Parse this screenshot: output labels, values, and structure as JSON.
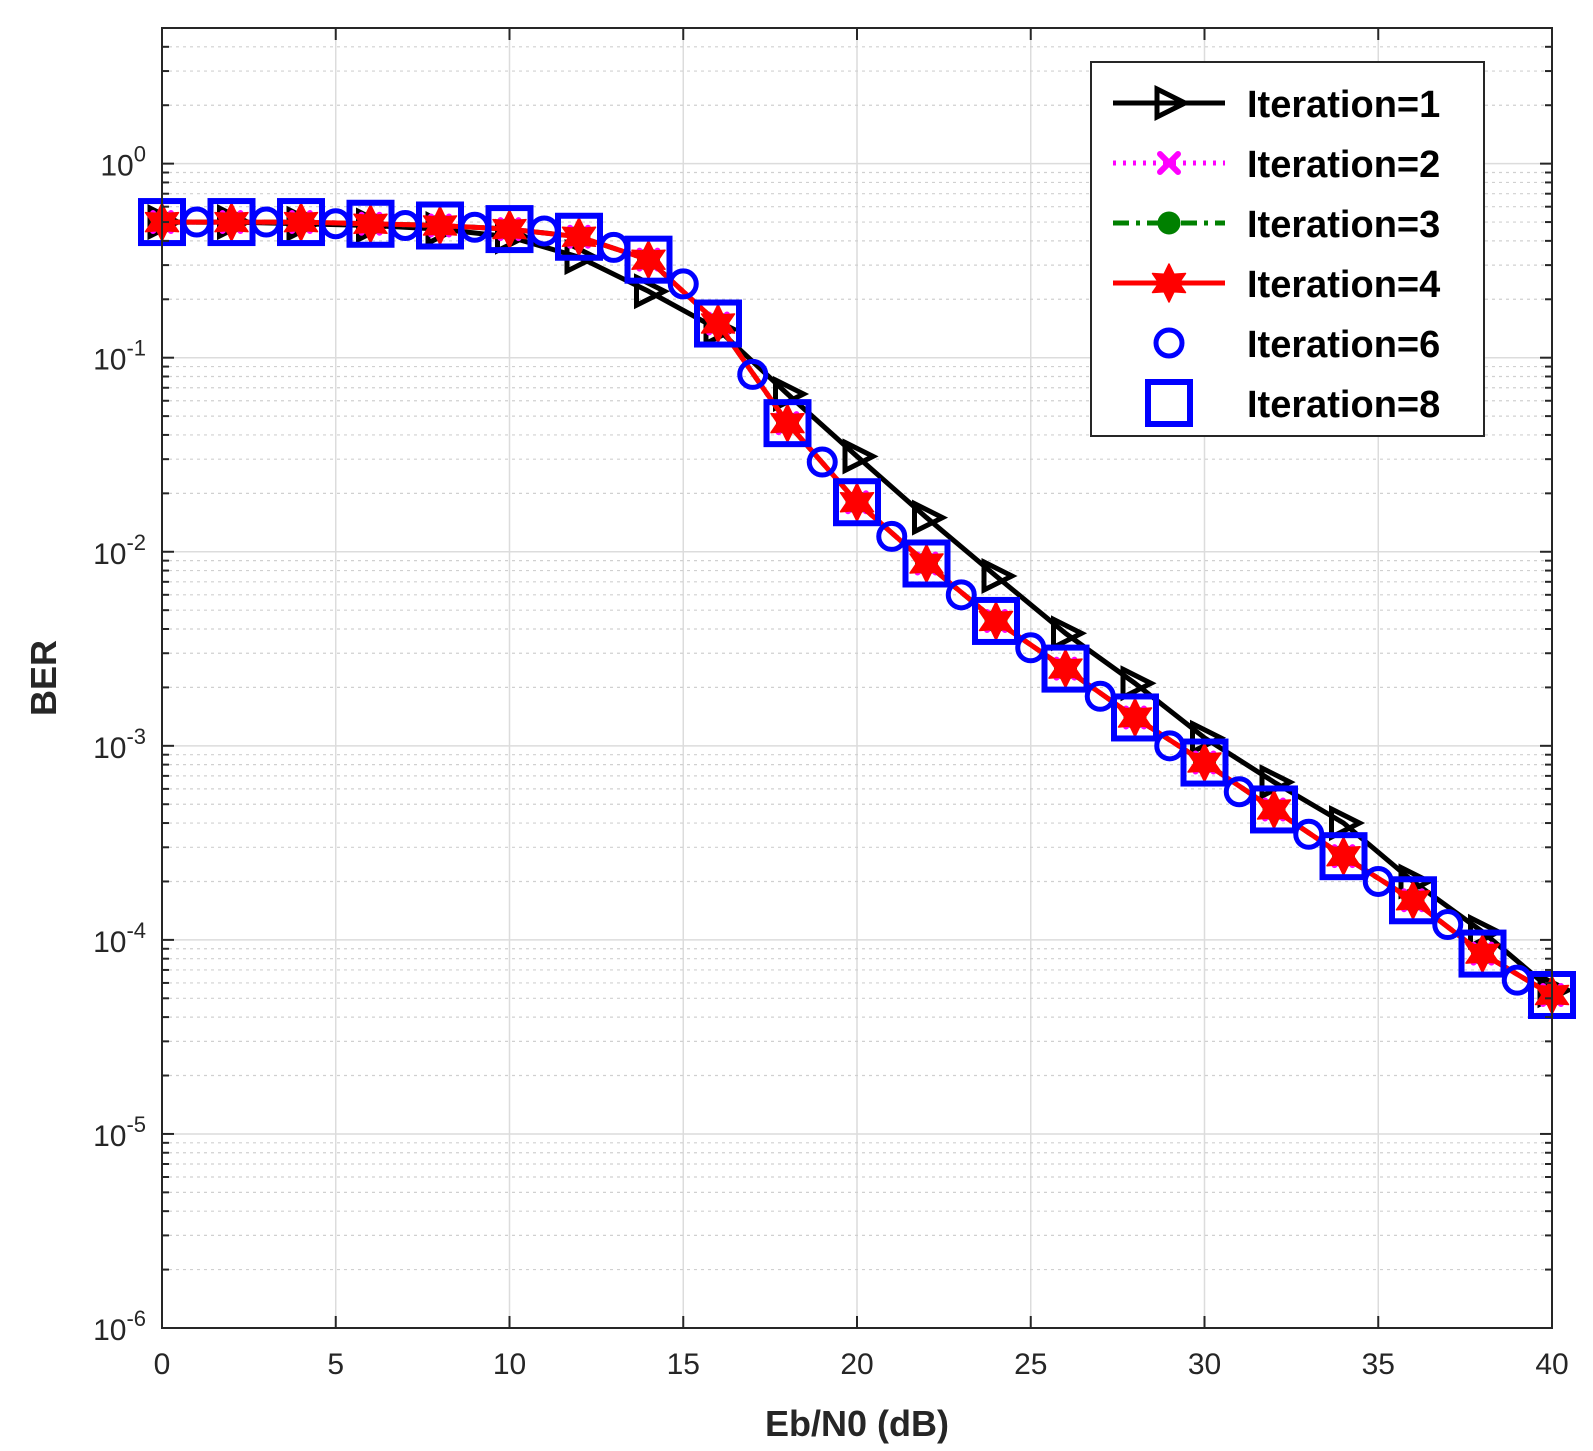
{
  "chart_data": {
    "type": "line",
    "title": "",
    "xlabel": "Eb/N0 (dB)",
    "ylabel": "BER",
    "xscale": "linear",
    "yscale": "log",
    "xlim": [
      0,
      40
    ],
    "ylim": [
      1e-06,
      5
    ],
    "xticks": [
      0,
      5,
      10,
      15,
      20,
      25,
      30,
      35,
      40
    ],
    "yticks": [
      {
        "value": 1e-06,
        "base": "10",
        "exp": "-6"
      },
      {
        "value": 1e-05,
        "base": "10",
        "exp": "-5"
      },
      {
        "value": 0.0001,
        "base": "10",
        "exp": "-4"
      },
      {
        "value": 0.001,
        "base": "10",
        "exp": "-3"
      },
      {
        "value": 0.01,
        "base": "10",
        "exp": "-2"
      },
      {
        "value": 0.1,
        "base": "10",
        "exp": "-1"
      },
      {
        "value": 1,
        "base": "10",
        "exp": "0"
      }
    ],
    "grid": true,
    "legend_position": "top-right",
    "series": [
      {
        "name": "Iteration=1",
        "color": "#000000",
        "line": "solid",
        "marker": "triangle-right",
        "x": [
          0,
          2,
          4,
          6,
          8,
          10,
          12,
          14,
          16,
          18,
          20,
          22,
          24,
          26,
          28,
          30,
          32,
          34,
          36,
          38,
          40
        ],
        "y": [
          0.5,
          0.5,
          0.49,
          0.48,
          0.46,
          0.42,
          0.33,
          0.22,
          0.14,
          0.065,
          0.031,
          0.015,
          0.0075,
          0.0038,
          0.0021,
          0.0011,
          0.00065,
          0.0004,
          0.0002,
          0.00011,
          5.5e-05
        ]
      },
      {
        "name": "Iteration=2",
        "color": "#ff00ff",
        "line": "dotted",
        "marker": "x",
        "x": [
          0,
          2,
          4,
          6,
          8,
          10,
          12,
          14,
          16,
          18,
          20,
          22,
          24,
          26,
          28,
          30,
          32,
          34,
          36,
          38,
          40
        ],
        "y": [
          0.5,
          0.5,
          0.5,
          0.49,
          0.48,
          0.46,
          0.42,
          0.32,
          0.15,
          0.046,
          0.018,
          0.0087,
          0.0044,
          0.0025,
          0.0014,
          0.00082,
          0.00047,
          0.00027,
          0.00016,
          8.5e-05,
          5.2e-05
        ]
      },
      {
        "name": "Iteration=3",
        "color": "#008000",
        "line": "dashdot",
        "marker": "circle-filled",
        "x": [
          0,
          2,
          4,
          6,
          8,
          10,
          12,
          14,
          16,
          18,
          20,
          22,
          24,
          26,
          28,
          30,
          32,
          34,
          36,
          38,
          40
        ],
        "y": [
          0.5,
          0.5,
          0.5,
          0.49,
          0.48,
          0.46,
          0.42,
          0.32,
          0.15,
          0.046,
          0.018,
          0.0087,
          0.0044,
          0.0025,
          0.0014,
          0.00082,
          0.00047,
          0.00027,
          0.00016,
          8.5e-05,
          5.2e-05
        ]
      },
      {
        "name": "Iteration=4",
        "color": "#ff0000",
        "line": "solid",
        "marker": "hexagram",
        "x": [
          0,
          2,
          4,
          6,
          8,
          10,
          12,
          14,
          16,
          18,
          20,
          22,
          24,
          26,
          28,
          30,
          32,
          34,
          36,
          38,
          40
        ],
        "y": [
          0.5,
          0.5,
          0.5,
          0.49,
          0.48,
          0.46,
          0.42,
          0.32,
          0.15,
          0.046,
          0.018,
          0.0087,
          0.0044,
          0.0025,
          0.0014,
          0.00082,
          0.00047,
          0.00027,
          0.00016,
          8.5e-05,
          5.2e-05
        ]
      },
      {
        "name": "Iteration=6",
        "color": "#0000ff",
        "line": "none",
        "marker": "circle",
        "x": [
          1,
          3,
          5,
          7,
          9,
          11,
          13,
          15,
          17,
          19,
          21,
          23,
          25,
          27,
          29,
          31,
          33,
          35,
          37,
          39
        ],
        "y": [
          0.5,
          0.5,
          0.49,
          0.48,
          0.47,
          0.45,
          0.37,
          0.24,
          0.082,
          0.029,
          0.012,
          0.006,
          0.0032,
          0.0018,
          0.001,
          0.00058,
          0.00035,
          0.0002,
          0.00012,
          6.2e-05
        ]
      },
      {
        "name": "Iteration=8",
        "color": "#0000ff",
        "line": "none",
        "marker": "square",
        "x": [
          0,
          2,
          4,
          6,
          8,
          10,
          12,
          14,
          16,
          18,
          20,
          22,
          24,
          26,
          28,
          30,
          32,
          34,
          36,
          38,
          40
        ],
        "y": [
          0.5,
          0.5,
          0.5,
          0.49,
          0.48,
          0.46,
          0.42,
          0.32,
          0.15,
          0.046,
          0.018,
          0.0087,
          0.0044,
          0.0025,
          0.0014,
          0.00082,
          0.00047,
          0.00027,
          0.00016,
          8.5e-05,
          5.2e-05
        ]
      }
    ]
  }
}
